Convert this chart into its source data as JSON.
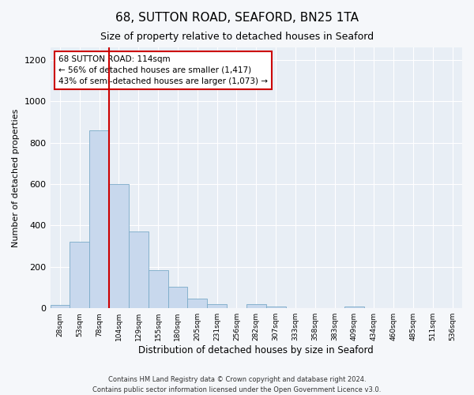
{
  "title": "68, SUTTON ROAD, SEAFORD, BN25 1TA",
  "subtitle": "Size of property relative to detached houses in Seaford",
  "xlabel": "Distribution of detached houses by size in Seaford",
  "ylabel": "Number of detached properties",
  "bin_labels": [
    "28sqm",
    "53sqm",
    "78sqm",
    "104sqm",
    "129sqm",
    "155sqm",
    "180sqm",
    "205sqm",
    "231sqm",
    "256sqm",
    "282sqm",
    "307sqm",
    "333sqm",
    "358sqm",
    "383sqm",
    "409sqm",
    "434sqm",
    "460sqm",
    "485sqm",
    "511sqm",
    "536sqm"
  ],
  "bar_heights": [
    15,
    320,
    860,
    600,
    370,
    185,
    105,
    45,
    20,
    0,
    20,
    10,
    0,
    0,
    0,
    10,
    0,
    0,
    0,
    0,
    0
  ],
  "bar_color": "#c8d8ed",
  "bar_edge_color": "#7aaac8",
  "vline_color": "#cc0000",
  "annotation_text": "68 SUTTON ROAD: 114sqm\n← 56% of detached houses are smaller (1,417)\n43% of semi-detached houses are larger (1,073) →",
  "annotation_box_facecolor": "#ffffff",
  "annotation_box_edgecolor": "#cc0000",
  "ylim": [
    0,
    1260
  ],
  "yticks": [
    0,
    200,
    400,
    600,
    800,
    1000,
    1200
  ],
  "footer_line1": "Contains HM Land Registry data © Crown copyright and database right 2024.",
  "footer_line2": "Contains public sector information licensed under the Open Government Licence v3.0.",
  "bg_color": "#f5f7fa",
  "plot_bg_color": "#e8eef5"
}
